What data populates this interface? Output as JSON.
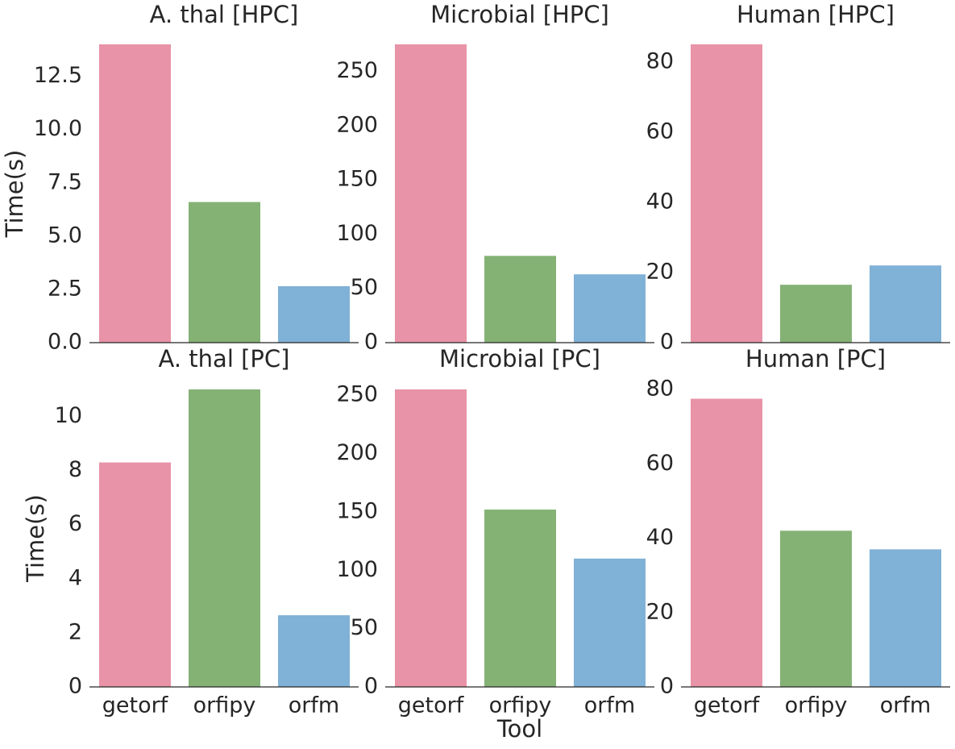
{
  "chart_data": {
    "type": "bar",
    "categories": [
      "getorf",
      "orfipy",
      "orfm"
    ],
    "category_colors": [
      "#e893a7",
      "#84b275",
      "#80b1d6"
    ],
    "axis_color": "#262626",
    "xlabel": "Tool",
    "panels": [
      {
        "title": "A. thal [HPC]",
        "ylabel": "Time(s)",
        "values": [
          14.0,
          6.6,
          2.65
        ],
        "ylim": [
          0,
          14.0
        ],
        "ticks": [
          0,
          2.5,
          5,
          7.5,
          10,
          12.5
        ],
        "tick_labels": [
          "0.0",
          "2.5",
          "5.0",
          "7.5",
          "10.0",
          "12.5"
        ]
      },
      {
        "title": "Microbial [HPC]",
        "ylabel": "",
        "values": [
          275,
          80,
          63
        ],
        "ylim": [
          0,
          275
        ],
        "ticks": [
          0,
          50,
          100,
          150,
          200,
          250
        ],
        "tick_labels": [
          "0",
          "50",
          "100",
          "150",
          "200",
          "250"
        ]
      },
      {
        "title": "Human [HPC]",
        "ylabel": "",
        "values": [
          85,
          16.5,
          22
        ],
        "ylim": [
          0,
          85
        ],
        "ticks": [
          0,
          20,
          40,
          60,
          80
        ],
        "tick_labels": [
          "0",
          "20",
          "40",
          "60",
          "80"
        ]
      },
      {
        "title": "A. thal [PC]",
        "ylabel": "Time(s)",
        "values": [
          8.3,
          11.0,
          2.65
        ],
        "ylim": [
          0,
          11.0
        ],
        "ticks": [
          0,
          2,
          4,
          6,
          8,
          10
        ],
        "tick_labels": [
          "0",
          "2",
          "4",
          "6",
          "8",
          "10"
        ]
      },
      {
        "title": "Microbial [PC]",
        "ylabel": "",
        "values": [
          255,
          152,
          110
        ],
        "ylim": [
          0,
          255
        ],
        "ticks": [
          0,
          50,
          100,
          150,
          200,
          250
        ],
        "tick_labels": [
          "0",
          "50",
          "100",
          "150",
          "200",
          "250"
        ]
      },
      {
        "title": "Human [PC]",
        "ylabel": "",
        "values": [
          77.5,
          42,
          37
        ],
        "ylim": [
          0,
          80
        ],
        "ticks": [
          0,
          20,
          40,
          60,
          80
        ],
        "tick_labels": [
          "0",
          "20",
          "40",
          "60",
          "80"
        ]
      }
    ]
  }
}
